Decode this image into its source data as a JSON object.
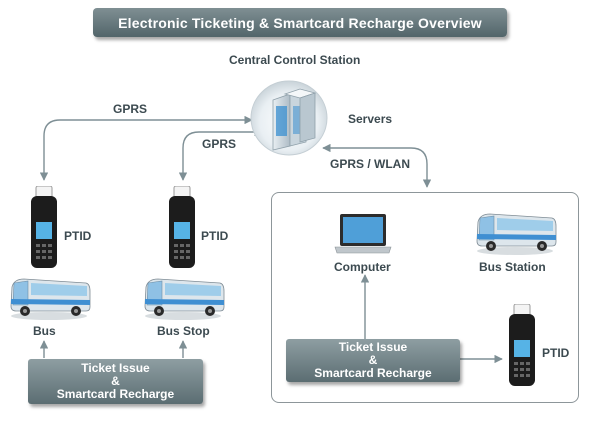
{
  "title": "Electronic Ticketing & Smartcard Recharge Overview",
  "central": {
    "heading": "Central Control Station",
    "servers": "Servers"
  },
  "links": {
    "gprs_left": "GPRS",
    "gprs_mid": "GPRS",
    "gprs_wlan": "GPRS / WLAN"
  },
  "left": {
    "ptid1": "PTID",
    "ptid2": "PTID",
    "bus": "Bus",
    "bus_stop": "Bus Stop",
    "ticket_box": {
      "line1": "Ticket Issue",
      "line2": "&",
      "line3": "Smartcard Recharge"
    }
  },
  "station": {
    "computer": "Computer",
    "bus_station": "Bus Station",
    "ptid": "PTID",
    "ticket_box": {
      "line1": "Ticket Issue",
      "line2": "&",
      "line3": "Smartcard Recharge"
    }
  },
  "colors": {
    "connector": "#7e8f95",
    "box_top": "#8e9ea2",
    "box_bottom": "#5b6d72",
    "bus_body": "#dde6ec",
    "bus_stripe": "#3f8fd2",
    "device": "#1c1c1c",
    "device_screen": "#56b3e6"
  }
}
